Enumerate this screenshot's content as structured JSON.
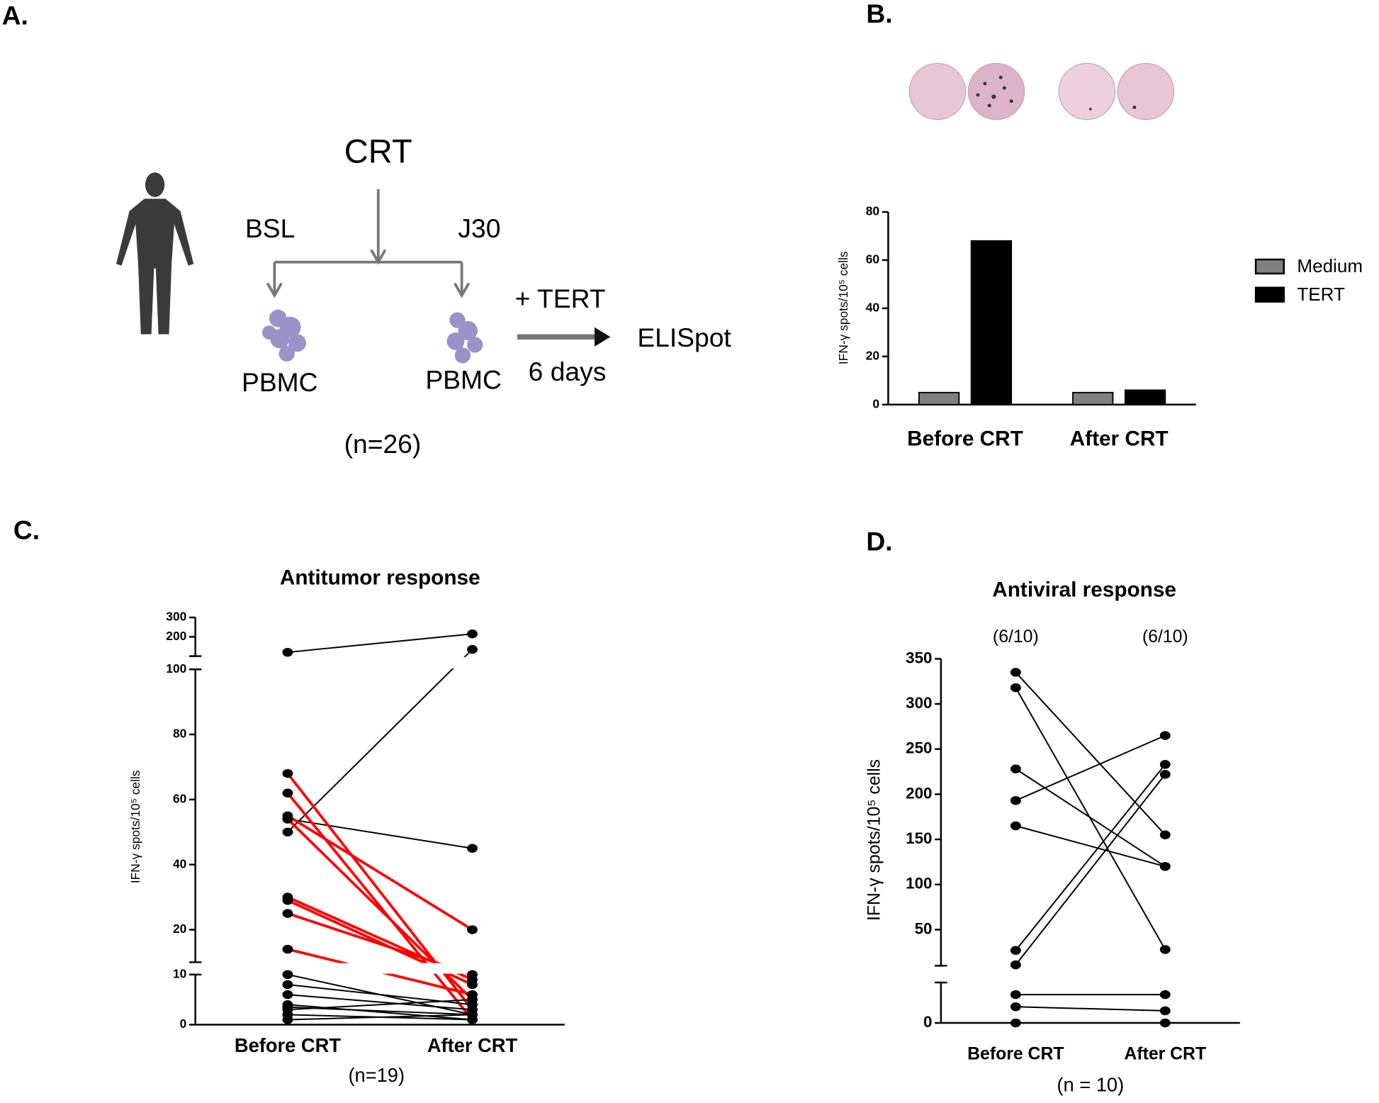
{
  "diagram": {
    "panel_label": "A.",
    "treatment": "CRT",
    "baseline": "BSL",
    "day": "J30",
    "cells_left": "PBMC",
    "cells_right": "PBMC",
    "stimulus": "+ TERT",
    "duration": "6 days",
    "assay": "ELISpot",
    "sample_size": "(n=26)"
  },
  "chart_data": [
    {
      "type": "bar",
      "panel_label": "B.",
      "y_label": "IFN-γ spots/10⁵ cells",
      "categories": [
        "Before CRT",
        "After CRT"
      ],
      "series": [
        {
          "name": "Medium",
          "color": "#808080",
          "values": [
            5,
            5
          ]
        },
        {
          "name": "TERT",
          "color": "#000000",
          "values": [
            68,
            6
          ]
        }
      ],
      "ylim": [
        0,
        80
      ],
      "yticks": [
        0,
        20,
        40,
        60,
        80
      ],
      "legend": "right"
    },
    {
      "type": "line",
      "panel_label": "C.",
      "title": "Antitumor response",
      "y_label": "IFN-γ spots/10⁵ cells",
      "x": [
        "Before CRT",
        "After CRT"
      ],
      "note": "(n=19)",
      "marker_color": "#000000",
      "ylim": [
        0,
        300
      ],
      "ybreaks": [
        10,
        100
      ],
      "yticks": [
        0,
        10,
        20,
        40,
        60,
        80,
        100,
        200,
        300
      ],
      "series": [
        {
          "color": "#000000",
          "values": [
            120,
            215
          ]
        },
        {
          "color": "#000000",
          "values": [
            50,
            135
          ]
        },
        {
          "color": "#000000",
          "values": [
            54,
            45
          ]
        },
        {
          "color": "#ff0000",
          "values": [
            68,
            3
          ]
        },
        {
          "color": "#ff0000",
          "values": [
            62,
            1
          ]
        },
        {
          "color": "#ff0000",
          "values": [
            55,
            20
          ]
        },
        {
          "color": "#ff0000",
          "values": [
            54,
            5
          ]
        },
        {
          "color": "#ff0000",
          "values": [
            30,
            9
          ]
        },
        {
          "color": "#ff0000",
          "values": [
            29,
            8
          ]
        },
        {
          "color": "#ff0000",
          "values": [
            25,
            10
          ]
        },
        {
          "color": "#ff0000",
          "values": [
            14,
            6
          ]
        },
        {
          "color": "#000000",
          "values": [
            10,
            2
          ]
        },
        {
          "color": "#000000",
          "values": [
            8,
            4
          ]
        },
        {
          "color": "#000000",
          "values": [
            6,
            3
          ]
        },
        {
          "color": "#000000",
          "values": [
            4,
            1
          ]
        },
        {
          "color": "#000000",
          "values": [
            3.5,
            2
          ]
        },
        {
          "color": "#000000",
          "values": [
            3,
            5
          ]
        },
        {
          "color": "#000000",
          "values": [
            2,
            1
          ]
        },
        {
          "color": "#000000",
          "values": [
            1,
            2
          ]
        }
      ]
    },
    {
      "type": "line",
      "panel_label": "D.",
      "title": "Antiviral response",
      "y_label": "IFN-γ spots/10⁵ cells",
      "x": [
        "Before CRT",
        "After CRT"
      ],
      "note": "(n = 10)",
      "x_annotations": [
        "(6/10)",
        "(6/10)"
      ],
      "marker_color": "#000000",
      "ylim": [
        0,
        350
      ],
      "ybreaks": [
        10
      ],
      "yticks": [
        0,
        50,
        100,
        150,
        200,
        250,
        300,
        350
      ],
      "series": [
        {
          "color": "#000000",
          "values": [
            335,
            155
          ]
        },
        {
          "color": "#000000",
          "values": [
            318,
            28
          ]
        },
        {
          "color": "#000000",
          "values": [
            228,
            120
          ]
        },
        {
          "color": "#000000",
          "values": [
            193,
            265
          ]
        },
        {
          "color": "#000000",
          "values": [
            165,
            120
          ]
        },
        {
          "color": "#000000",
          "values": [
            27,
            233
          ]
        },
        {
          "color": "#000000",
          "values": [
            11,
            222
          ]
        },
        {
          "color": "#000000",
          "values": [
            7,
            7
          ]
        },
        {
          "color": "#000000",
          "values": [
            4,
            3
          ]
        },
        {
          "color": "#000000",
          "values": [
            0,
            0
          ]
        }
      ]
    }
  ]
}
